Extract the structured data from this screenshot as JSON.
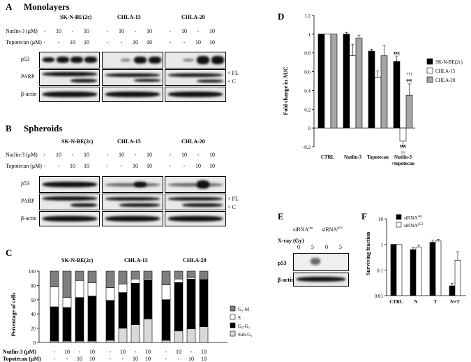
{
  "panelA": {
    "letter": "A",
    "title": "Monolayers"
  },
  "panelB": {
    "letter": "B",
    "title": "Spheroids"
  },
  "cellLines": [
    "SK-N-BE(2c)",
    "CHLA-15",
    "CHLA-20"
  ],
  "treatLabels": {
    "nutlin": "Nutlin-3 (μM)",
    "topotecan": "Topotecan (μM)"
  },
  "treatBold": {
    "nutlin": "Nutlin-3 (μM)",
    "topotecan": "Topotecan (μM)"
  },
  "nutlinRow": [
    "-",
    "10",
    "-",
    "10"
  ],
  "topoRow": [
    "-",
    "-",
    "10",
    "10"
  ],
  "blotLabels": {
    "p53": "p53",
    "parp": "PARP",
    "actin": "β-actin",
    "fl": "< FL",
    "c": "< C"
  },
  "panelC": {
    "letter": "C",
    "ylabel": "Percentage of cells",
    "yticks": [
      "0",
      "20",
      "40",
      "60",
      "80",
      "100"
    ],
    "legend": [
      "G₂-M",
      "S",
      "G₀-G₁",
      "Sub-G₁"
    ],
    "legend_colors": [
      "#7f7f7f",
      "#ffffff",
      "#000000",
      "#d9d9d9"
    ]
  },
  "panelD": {
    "letter": "D",
    "ylabel": "Fold change in AUC",
    "yticks": [
      "-0.2",
      "0",
      "0.2",
      "0.4",
      "0.6",
      "0.8",
      "1",
      "1.2"
    ],
    "categories": [
      "CTRL",
      "Nutlin-3",
      "Topotecan",
      "Nutlin-3",
      "+topotecan"
    ],
    "legend": [
      "SK-N-BE(2c)",
      "CHLA-15",
      "CHLA-20"
    ],
    "sig_top": [
      "¶¶¶",
      "†††",
      "¶¶¶"
    ],
    "sig_bottom": [
      "¶¶¶",
      "††"
    ]
  },
  "panelE": {
    "letter": "E",
    "siRNA": [
      "siRNA",
      "unt",
      "siRNA",
      "p53"
    ],
    "xray": "X-ray (Gy)",
    "doses": [
      "0",
      "5",
      "0",
      "5"
    ],
    "rows": [
      "p53",
      "β-actin"
    ]
  },
  "panelF": {
    "letter": "F",
    "ylabel": "Surviving fraction",
    "yticks": [
      "10",
      "1",
      "0.1",
      "0.01"
    ],
    "categories": [
      "CTRL",
      "N",
      "T",
      "N+T"
    ],
    "legend": [
      "siRNA",
      "unt",
      "siRNA",
      "p53"
    ]
  },
  "chart_data": [
    {
      "type": "bar",
      "panel": "C",
      "ylabel": "Percentage of cells",
      "ylim": [
        0,
        100
      ],
      "categories": [
        "SK-N-BE(2c) -/-",
        "SK-N-BE(2c) 10/-",
        "SK-N-BE(2c) -/10",
        "SK-N-BE(2c) 10/10",
        "CHLA-15 -/-",
        "CHLA-15 10/-",
        "CHLA-15 -/10",
        "CHLA-15 10/10",
        "CHLA-20 -/-",
        "CHLA-20 10/-",
        "CHLA-20 -/10",
        "CHLA-20 10/10"
      ],
      "stacked": true,
      "series": [
        {
          "name": "Sub-G₁",
          "values": [
            2,
            2,
            2,
            2,
            3,
            20,
            25,
            33,
            3,
            16,
            19,
            22
          ]
        },
        {
          "name": "G₀-G₁",
          "values": [
            48,
            47,
            61,
            63,
            56,
            50,
            58,
            55,
            57,
            68,
            70,
            66
          ]
        },
        {
          "name": "S",
          "values": [
            28,
            14,
            24,
            19,
            18,
            12,
            6,
            2,
            21,
            5,
            2,
            1
          ]
        },
        {
          "name": "G₂-M",
          "values": [
            22,
            37,
            13,
            16,
            23,
            18,
            11,
            10,
            19,
            11,
            9,
            11
          ]
        }
      ]
    },
    {
      "type": "bar",
      "panel": "D",
      "ylabel": "Fold change in AUC",
      "ylim": [
        -0.2,
        1.2
      ],
      "categories": [
        "CTRL",
        "Nutlin-3",
        "Topotecan",
        "Nutlin-3 +topotecan"
      ],
      "series": [
        {
          "name": "SK-N-BE(2c)",
          "values": [
            1.0,
            1.0,
            0.82,
            0.71
          ],
          "err": [
            0,
            0.02,
            0.02,
            0.05
          ]
        },
        {
          "name": "CHLA-15",
          "values": [
            1.0,
            0.77,
            0.54,
            -0.14
          ],
          "err": [
            0,
            0.12,
            0.07,
            0.06
          ]
        },
        {
          "name": "CHLA-20",
          "values": [
            1.0,
            0.96,
            0.77,
            0.35
          ],
          "err": [
            0,
            0.03,
            0.11,
            0.12
          ]
        }
      ]
    },
    {
      "type": "bar",
      "panel": "F",
      "ylabel": "Surviving fraction",
      "yscale": "log",
      "ylim": [
        0.01,
        10
      ],
      "categories": [
        "CTRL",
        "N",
        "T",
        "N+T"
      ],
      "series": [
        {
          "name": "siRNA unt",
          "values": [
            1.0,
            0.62,
            1.2,
            0.024
          ],
          "err": [
            0,
            0.12,
            0.25,
            0.006
          ]
        },
        {
          "name": "siRNA p53",
          "values": [
            1.0,
            0.78,
            1.35,
            0.24
          ],
          "err": [
            0,
            0.15,
            0.2,
            0.28
          ]
        }
      ]
    }
  ]
}
